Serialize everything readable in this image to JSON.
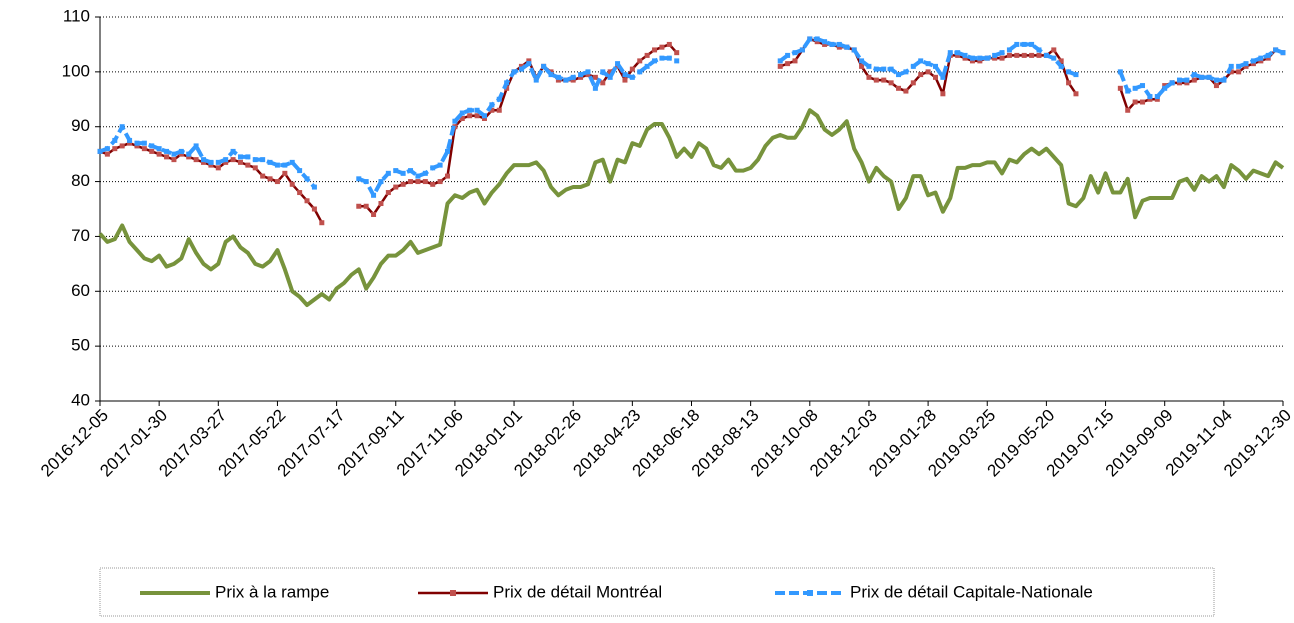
{
  "chart_data": {
    "type": "line",
    "categories": [
      "2016-12-05",
      null,
      null,
      null,
      null,
      null,
      null,
      null,
      "2017-01-30",
      null,
      null,
      null,
      null,
      null,
      null,
      null,
      "2017-03-27",
      null,
      null,
      null,
      null,
      null,
      null,
      null,
      "2017-05-22",
      null,
      null,
      null,
      null,
      null,
      null,
      null,
      "2017-07-17",
      null,
      null,
      null,
      null,
      null,
      null,
      null,
      "2017-09-11",
      null,
      null,
      null,
      null,
      null,
      null,
      null,
      "2017-11-06",
      null,
      null,
      null,
      null,
      null,
      null,
      null,
      "2018-01-01",
      null,
      null,
      null,
      null,
      null,
      null,
      null,
      "2018-02-26",
      null,
      null,
      null,
      null,
      null,
      null,
      null,
      "2018-04-23",
      null,
      null,
      null,
      null,
      null,
      null,
      null,
      "2018-06-18",
      null,
      null,
      null,
      null,
      null,
      null,
      null,
      "2018-08-13",
      null,
      null,
      null,
      null,
      null,
      null,
      null,
      "2018-10-08",
      null,
      null,
      null,
      null,
      null,
      null,
      null,
      "2018-12-03",
      null,
      null,
      null,
      null,
      null,
      null,
      null,
      "2019-01-28",
      null,
      null,
      null,
      null,
      null,
      null,
      null,
      "2019-03-25",
      null,
      null,
      null,
      null,
      null,
      null,
      null,
      "2019-05-20",
      null,
      null,
      null,
      null,
      null,
      null,
      null,
      "2019-07-15",
      null,
      null,
      null,
      null,
      null,
      null,
      null,
      "2019-09-09",
      null,
      null,
      null,
      null,
      null,
      null,
      null,
      "2019-11-04",
      null,
      null,
      null,
      null,
      null,
      null,
      null,
      "2019-12-30"
    ],
    "series": [
      {
        "name": "Prix à la rampe",
        "color": "#77933c",
        "marker": "none",
        "dash": false,
        "values": [
          70.5,
          69,
          69.5,
          72,
          69,
          67.5,
          66,
          65.5,
          66.5,
          64.5,
          65,
          66,
          69.5,
          67,
          65,
          64,
          65,
          69,
          70,
          68,
          67,
          65,
          64.5,
          65.5,
          67.5,
          64,
          60,
          59,
          57.5,
          58.5,
          59.5,
          58.5,
          60.5,
          61.5,
          63,
          64,
          60.5,
          62.5,
          65,
          66.5,
          66.5,
          67.5,
          69,
          67,
          67.5,
          68,
          68.5,
          76,
          77.5,
          77,
          78,
          78.5,
          76,
          78,
          79.5,
          81.5,
          83,
          83,
          83,
          83.5,
          82,
          79,
          77.5,
          78.5,
          79,
          79,
          79.5,
          83.5,
          84,
          80,
          84,
          83.5,
          87,
          86.5,
          89.5,
          90.5,
          90.5,
          88,
          84.5,
          86,
          84.5,
          87,
          86,
          83,
          82.5,
          84,
          82,
          82,
          82.5,
          84,
          86.5,
          88,
          88.5,
          88,
          88,
          90,
          93,
          92,
          89.5,
          88.5,
          89.5,
          91,
          86,
          83.5,
          80,
          82.5,
          81,
          80,
          75,
          77,
          81,
          81,
          77.5,
          78,
          74.5,
          77,
          82.5,
          82.5,
          83,
          83,
          83.5,
          83.5,
          81.5,
          84,
          83.5,
          85,
          86,
          85,
          86,
          84.5,
          83,
          76,
          75.5,
          77,
          81,
          78,
          81.5,
          78,
          78,
          80.5,
          73.5,
          76.5,
          77,
          77,
          77,
          77,
          80,
          80.5,
          78.5,
          81,
          80,
          81,
          79,
          83,
          82,
          80.5,
          82,
          81.5,
          81,
          83.5,
          82.5
        ]
      },
      {
        "name": "Prix de détail Montréal",
        "color": "#800000",
        "marker_color": "#c0504d",
        "marker": "square",
        "dash": false,
        "values": [
          85.5,
          85,
          86,
          86.5,
          87,
          86.5,
          86,
          85.5,
          85,
          84.5,
          84,
          85,
          84.5,
          84,
          83.5,
          83,
          82.5,
          83.5,
          84,
          83.5,
          83,
          82.5,
          81,
          80.5,
          80,
          81.5,
          79.5,
          78,
          76.5,
          75,
          72.5,
          null,
          null,
          null,
          null,
          75.5,
          75.5,
          74,
          76,
          78,
          79,
          79.5,
          80,
          80,
          80,
          79.5,
          80,
          81,
          90,
          91.5,
          92,
          92,
          91.5,
          93,
          93,
          97,
          100,
          101,
          102,
          99,
          101,
          100,
          98.5,
          98.5,
          98.5,
          99,
          99.5,
          99,
          98,
          100,
          101,
          98.5,
          100.5,
          102,
          103,
          104,
          104.5,
          105,
          103.5,
          null,
          null,
          null,
          null,
          null,
          null,
          null,
          null,
          null,
          null,
          null,
          null,
          null,
          101,
          101.5,
          102,
          104,
          106,
          105.5,
          105,
          105,
          104.5,
          104.5,
          104,
          101,
          99,
          98.5,
          98.5,
          98,
          97,
          96.5,
          98,
          99.5,
          100,
          99,
          96,
          103,
          103,
          102.5,
          102,
          102,
          102.5,
          102.5,
          102.5,
          103,
          103,
          103,
          103,
          103,
          103,
          104,
          102,
          98,
          96,
          null,
          null,
          null,
          null,
          null,
          97,
          93,
          94.5,
          94.5,
          95,
          95,
          97.5,
          98,
          98,
          98,
          98.5,
          99,
          99,
          97.5,
          98.5,
          100,
          100,
          101,
          101.5,
          102,
          102.5,
          104,
          103.5
        ]
      },
      {
        "name": "Prix de détail Capitale-Nationale",
        "color": "#3399ff",
        "marker_color": "#3399ff",
        "marker": "square",
        "dash": true,
        "values": [
          85.5,
          86,
          87.5,
          90,
          87.5,
          87,
          87,
          86.5,
          86,
          85.5,
          85,
          85.5,
          85,
          86.5,
          84,
          83.5,
          83.5,
          84,
          85.5,
          84.5,
          84.5,
          84,
          84,
          83.5,
          83,
          83,
          83.5,
          82,
          80.5,
          79,
          null,
          null,
          null,
          null,
          null,
          80.5,
          80,
          77.5,
          80,
          81.5,
          82,
          81.5,
          82,
          81,
          81.5,
          82.5,
          83,
          85.5,
          91,
          92.5,
          93,
          93,
          92,
          94,
          95,
          98,
          100,
          100.5,
          101.5,
          98.5,
          101,
          99.5,
          99,
          98.5,
          99,
          99.5,
          100,
          97,
          100,
          99,
          101.5,
          99.5,
          99,
          100,
          101,
          102,
          102.5,
          102.5,
          102,
          null,
          null,
          null,
          null,
          null,
          null,
          null,
          null,
          null,
          null,
          null,
          null,
          null,
          102,
          103,
          103.5,
          104,
          106,
          106,
          105.5,
          105,
          105,
          104.5,
          104,
          102,
          101,
          100.5,
          100.5,
          100.5,
          99.5,
          100,
          101,
          102,
          101.5,
          101,
          99,
          103.5,
          103.5,
          103,
          102.5,
          102.5,
          102.5,
          103,
          103.5,
          104,
          105,
          105,
          105,
          104,
          103,
          102.5,
          101,
          100,
          99.5,
          null,
          null,
          null,
          null,
          null,
          100,
          96.5,
          97,
          97.5,
          95.5,
          95.5,
          97,
          98,
          98.5,
          98.5,
          99.5,
          99,
          99,
          98.5,
          98.5,
          101,
          101,
          101.5,
          102,
          102.5,
          103,
          104,
          103.5
        ]
      }
    ],
    "ylim": [
      40,
      110
    ],
    "yticks": [
      40,
      50,
      60,
      70,
      80,
      90,
      100,
      110
    ],
    "grid": true,
    "legend": "bottom"
  }
}
